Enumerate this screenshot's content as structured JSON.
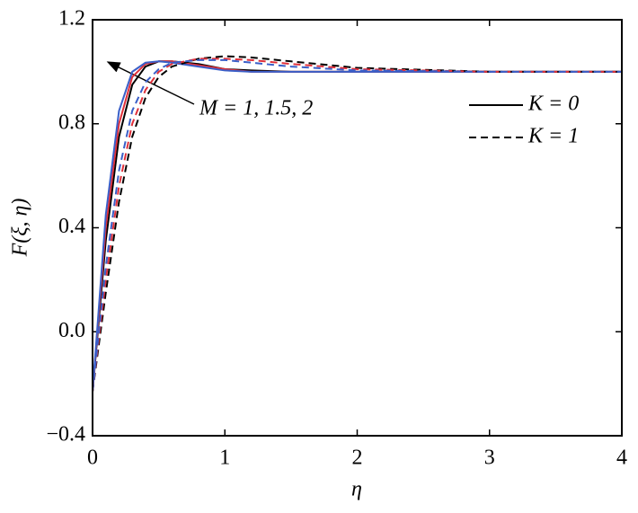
{
  "chart_data": {
    "type": "line",
    "xlabel": "η",
    "ylabel": "F(ξ, η)",
    "annotation": "M = 1, 1.5, 2",
    "x": [
      0,
      0.1,
      0.2,
      0.3,
      0.4,
      0.5,
      0.6,
      0.8,
      1.0,
      1.2,
      1.5,
      2,
      3,
      4
    ],
    "series": [
      {
        "color": "#000000",
        "dash": "solid",
        "values": [
          -0.23,
          0.35,
          0.75,
          0.95,
          1.02,
          1.04,
          1.04,
          1.03,
          1.01,
          1.005,
          1.0,
          1.0,
          1.0,
          1.0
        ]
      },
      {
        "color": "#e0303a",
        "dash": "solid",
        "values": [
          -0.23,
          0.4,
          0.8,
          0.98,
          1.03,
          1.04,
          1.04,
          1.025,
          1.01,
          1.0,
          1.0,
          1.0,
          1.0,
          1.0
        ]
      },
      {
        "color": "#3a5fc8",
        "dash": "solid",
        "values": [
          -0.23,
          0.45,
          0.85,
          1.0,
          1.035,
          1.04,
          1.035,
          1.02,
          1.005,
          1.0,
          1.0,
          1.0,
          1.0,
          1.0
        ]
      },
      {
        "color": "#000000",
        "dash": "dashed",
        "values": [
          -0.23,
          0.15,
          0.5,
          0.75,
          0.9,
          0.98,
          1.02,
          1.05,
          1.06,
          1.055,
          1.04,
          1.015,
          1.0,
          1.0
        ]
      },
      {
        "color": "#e0303a",
        "dash": "dashed",
        "values": [
          -0.23,
          0.2,
          0.56,
          0.8,
          0.93,
          1.0,
          1.03,
          1.05,
          1.05,
          1.045,
          1.03,
          1.01,
          1.0,
          1.0
        ]
      },
      {
        "color": "#3a5fc8",
        "dash": "dashed",
        "values": [
          -0.23,
          0.25,
          0.62,
          0.85,
          0.96,
          1.01,
          1.035,
          1.045,
          1.045,
          1.035,
          1.02,
          1.005,
          1.0,
          1.0
        ]
      }
    ],
    "legend": [
      {
        "label": "K = 0",
        "dash": "solid"
      },
      {
        "label": "K = 1",
        "dash": "dashed"
      }
    ],
    "legend_loc": "upper right",
    "xlim": [
      0,
      4
    ],
    "xticks": [
      0,
      1,
      2,
      3,
      4
    ],
    "ylim": [
      -0.4,
      1.2
    ],
    "yticks": [
      {
        "value": -0.4,
        "label": "−0.4"
      },
      {
        "value": 0,
        "label": "0.0"
      },
      {
        "value": 0.4,
        "label": "0.4"
      },
      {
        "value": 0.8,
        "label": "0.8"
      },
      1.2
    ]
  }
}
